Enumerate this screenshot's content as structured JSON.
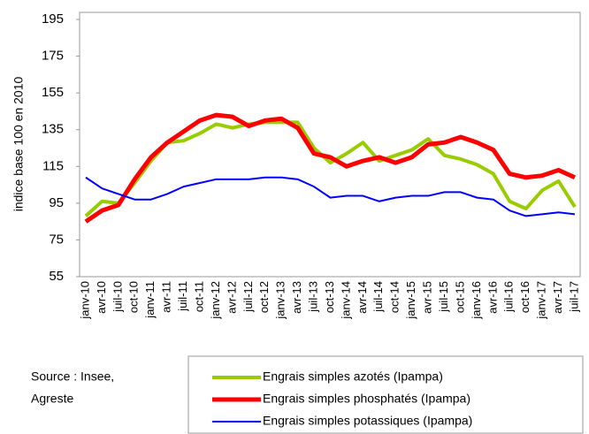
{
  "chart_data": {
    "type": "line",
    "y_label": "indice base 100 en 2010",
    "source": [
      "Source : Insee,",
      "Agreste"
    ],
    "categories": [
      "janv-10",
      "avr-10",
      "juil-10",
      "oct-10",
      "janv-11",
      "avr-11",
      "juil-11",
      "oct-11",
      "janv-12",
      "avr-12",
      "juil-12",
      "oct-12",
      "janv-13",
      "avr-13",
      "juil-13",
      "oct-13",
      "janv-14",
      "avr-14",
      "juil-14",
      "oct-14",
      "janv-15",
      "avr-15",
      "juil-15",
      "oct-15",
      "janv-16",
      "avr-16",
      "juil-16",
      "oct-16",
      "janv-17",
      "avr-17",
      "juil-17"
    ],
    "series": [
      {
        "name": "Engrais simples azotés (Ipampa)",
        "color": "#99cc00",
        "width": 4,
        "values": [
          88,
          96,
          95,
          106,
          118,
          128,
          129,
          133,
          138,
          136,
          138,
          139,
          139,
          139,
          125,
          117,
          122,
          128,
          118,
          121,
          124,
          130,
          121,
          119,
          116,
          111,
          96,
          92,
          102,
          107,
          93
        ]
      },
      {
        "name": "Engrais simples phosphatés (Ipampa)",
        "color": "#ff0000",
        "width": 5,
        "values": [
          85,
          91,
          94,
          108,
          120,
          128,
          134,
          140,
          143,
          142,
          137,
          140,
          141,
          136,
          122,
          120,
          115,
          118,
          120,
          117,
          120,
          127,
          128,
          131,
          128,
          124,
          111,
          109,
          110,
          113,
          109
        ]
      },
      {
        "name": "Engrais simples potassiques (Ipampa)",
        "color": "#0000ff",
        "width": 2,
        "values": [
          109,
          103,
          100,
          97,
          97,
          100,
          104,
          106,
          108,
          108,
          108,
          109,
          109,
          108,
          104,
          98,
          99,
          99,
          96,
          98,
          99,
          99,
          101,
          101,
          98,
          97,
          91,
          88,
          89,
          90,
          89
        ]
      }
    ],
    "ylim": [
      55,
      195
    ],
    "yticks": [
      55,
      75,
      95,
      115,
      135,
      155,
      175,
      195
    ],
    "grid": false
  }
}
